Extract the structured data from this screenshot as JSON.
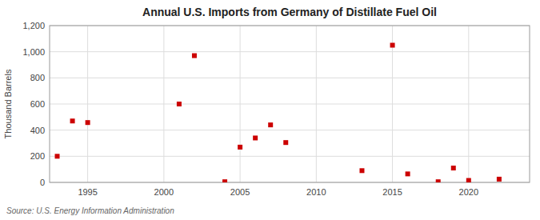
{
  "chart_data": {
    "type": "scatter",
    "title": "Annual U.S. Imports from Germany of Distillate Fuel Oil",
    "ylabel": "Thousand Barrels",
    "source": "Source: U.S. Energy Information Administration",
    "x": [
      1993,
      1994,
      1995,
      2001,
      2002,
      2004,
      2005,
      2006,
      2007,
      2008,
      2013,
      2015,
      2016,
      2018,
      2019,
      2020,
      2022
    ],
    "values": [
      200,
      470,
      458,
      600,
      970,
      5,
      270,
      340,
      440,
      305,
      90,
      1050,
      65,
      5,
      110,
      15,
      25
    ],
    "color": "#cc0000",
    "marker": "square",
    "xlim": [
      1992.5,
      2024
    ],
    "ylim": [
      0,
      1200
    ],
    "xticks": [
      1995,
      2000,
      2005,
      2010,
      2015,
      2020
    ],
    "yticks": [
      0,
      200,
      400,
      600,
      800,
      {
        "value": 1000,
        "label": "1,000"
      },
      {
        "value": 1200,
        "label": "1,200"
      }
    ],
    "grid": true
  }
}
